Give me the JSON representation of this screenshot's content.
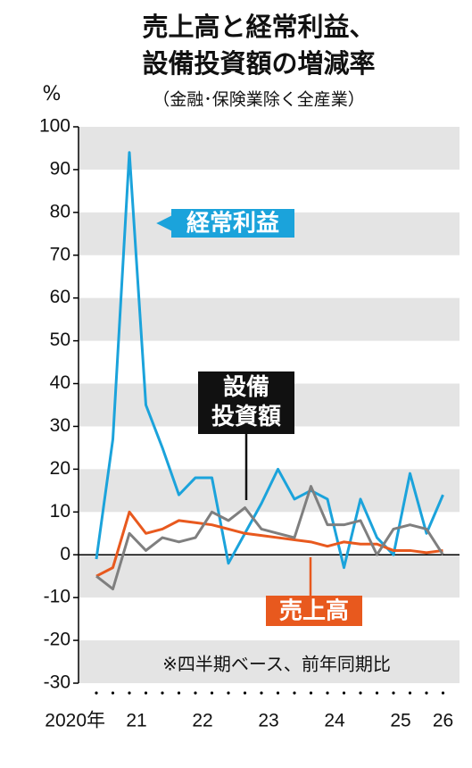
{
  "chart_data": {
    "type": "line",
    "title": [
      "売上高と経常利益、",
      "設備投資額の増減率"
    ],
    "subtitle": "（金融･保険業除く全産業）",
    "y_label": "%",
    "note": "※四半期ベース、前年同期比",
    "categories": [
      "2020年",
      null,
      "21",
      null,
      null,
      null,
      "22",
      null,
      null,
      null,
      "23",
      null,
      null,
      null,
      "24",
      null,
      null,
      null,
      "25",
      null,
      null,
      "26"
    ],
    "series": [
      {
        "name": "経常利益",
        "color": "#1ba3db",
        "values": [
          -1,
          27,
          94,
          35,
          25,
          14,
          18,
          18,
          -2,
          5,
          12,
          20,
          13,
          15,
          13,
          -3,
          13,
          4,
          0,
          19,
          5,
          14
        ]
      },
      {
        "name": "設備\n投資額",
        "color": "#7f7f7f",
        "values": [
          -5,
          -8,
          5,
          1,
          4,
          3,
          4,
          10,
          8,
          11,
          6,
          5,
          4,
          16,
          7,
          7,
          8,
          0,
          6,
          7,
          6,
          0
        ]
      },
      {
        "name": "売上高",
        "color": "#e8591e",
        "values": [
          -5,
          -3,
          10,
          5,
          6,
          8,
          7.5,
          7,
          6,
          5,
          4.5,
          4,
          3.5,
          3,
          2,
          3,
          2.5,
          2.5,
          1,
          1,
          0.5,
          1
        ]
      }
    ],
    "ylim": [
      -30,
      100
    ],
    "yticks": [
      -30,
      -20,
      -10,
      0,
      10,
      20,
      30,
      40,
      50,
      60,
      70,
      80,
      90,
      100
    ],
    "grid": true
  }
}
